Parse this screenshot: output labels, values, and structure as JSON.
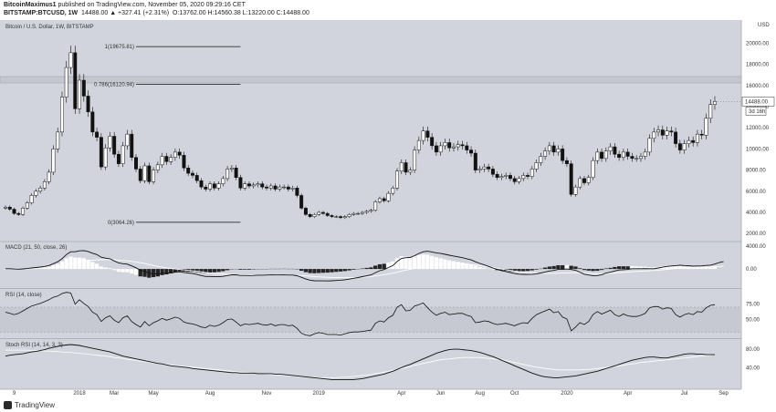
{
  "header": {
    "author": "BitcoinMaximus1",
    "published_line": " published on TradingView.com, November 05, 2020 09:29:16 CET",
    "symbol_line": "BITSTAMP:BTCUSD, 1W",
    "change": "14488.00 ▲ +327.41 (+2.31%)",
    "ohlc": "O:13762.00  H:14560.38  L:13220.00  C:14488.00"
  },
  "chart_data": [
    {
      "type": "candlestick",
      "title": "Bitcoin / U.S. Dollar, 1W, BITSTAMP",
      "currency": "USD",
      "y_ticks": [
        "20000.00",
        "18000.00",
        "16000.00",
        "14000.00",
        "12000.00",
        "10000.00",
        "8000.00",
        "6000.00",
        "4000.00",
        "2000.00"
      ],
      "ylim": [
        1500,
        21500
      ],
      "x_ticks": [
        "9",
        "2018",
        "Mar",
        "May",
        "Aug",
        "Nov",
        "2019",
        "Apr",
        "Jun",
        "Aug",
        "Oct",
        "2020",
        "Apr",
        "Jul",
        "Sep"
      ],
      "close": [
        4500,
        4300,
        3900,
        3800,
        4400,
        4900,
        5600,
        6000,
        6300,
        6900,
        7800,
        10000,
        11600,
        14900,
        17700,
        19100,
        13800,
        16500,
        15000,
        13500,
        11600,
        11100,
        8300,
        10100,
        11200,
        9500,
        8600,
        10300,
        11400,
        9200,
        8100,
        7000,
        8400,
        6900,
        8000,
        8500,
        9300,
        8800,
        9200,
        9700,
        9400,
        8200,
        7700,
        7500,
        7000,
        6400,
        6200,
        6700,
        6300,
        6700,
        7200,
        8100,
        8200,
        7300,
        6300,
        6700,
        6500,
        6600,
        6700,
        6400,
        6300,
        6500,
        6200,
        6400,
        6400,
        6200,
        6300,
        5600,
        4400,
        3800,
        3600,
        3800,
        4000,
        3900,
        3700,
        3600,
        3600,
        3500,
        3600,
        3800,
        3900,
        3900,
        4000,
        4100,
        4200,
        5000,
        5300,
        5100,
        5800,
        6300,
        7900,
        8700,
        7800,
        8000,
        9900,
        10800,
        11700,
        11100,
        10300,
        9700,
        10300,
        10600,
        10100,
        10200,
        10400,
        10300,
        9900,
        9600,
        8000,
        8100,
        8300,
        8100,
        7600,
        7300,
        7400,
        7500,
        7200,
        6900,
        7200,
        7500,
        7400,
        8100,
        8700,
        9300,
        9800,
        10300,
        9700,
        10000,
        8900,
        8600,
        5700,
        6400,
        7200,
        6800,
        7300,
        8900,
        9700,
        9100,
        9800,
        10200,
        9500,
        9200,
        9700,
        9300,
        9100,
        9100,
        9300,
        9700,
        11000,
        11600,
        11800,
        11300,
        11700,
        11600,
        10500,
        9900,
        10500,
        10800,
        10600,
        11400,
        11300,
        12900,
        14200,
        14488
      ],
      "fib_levels": [
        {
          "label": "1(19675.81)",
          "value": 19675.81
        },
        {
          "label": "0.786(16120.94)",
          "value": 16120.94
        },
        {
          "label": "0(3064.26)",
          "value": 3064.26
        }
      ],
      "last_price_label": "14488.00",
      "countdown_label": "3d 16h"
    },
    {
      "type": "line",
      "title": "MACD (21, 50, close, 26)",
      "y_ticks": [
        "4000.00",
        "0.00"
      ],
      "ylim": [
        -3000,
        4300
      ],
      "series": [
        {
          "values": [
            50,
            40,
            0,
            -30,
            20,
            80,
            170,
            250,
            340,
            450,
            600,
            920,
            1250,
            1800,
            2500,
            3000,
            3000,
            3150,
            3200,
            3050,
            2750,
            2500,
            2050,
            1880,
            1770,
            1400,
            1050,
            920,
            840,
            540,
            200,
            -200,
            -420,
            -750,
            -820,
            -850,
            -750,
            -750,
            -680,
            -550,
            -500,
            -600,
            -700,
            -800,
            -950,
            -1150,
            -1300,
            -1300,
            -1350,
            -1350,
            -1290,
            -1150,
            -1010,
            -1010,
            -1120,
            -1120,
            -1150,
            -1120,
            -1080,
            -1080,
            -1070,
            -1040,
            -1050,
            -1050,
            -1040,
            -1060,
            -1060,
            -1170,
            -1450,
            -1750,
            -1960,
            -2050,
            -2060,
            -2070,
            -2080,
            -2050,
            -2000,
            -1950,
            -1880,
            -1760,
            -1620,
            -1500,
            -1340,
            -1190,
            -1030,
            -640,
            -300,
            -100,
            260,
            580,
            1300,
            1840,
            1960,
            2000,
            2320,
            2710,
            3000,
            3090,
            2970,
            2810,
            2690,
            2560,
            2400,
            2250,
            2110,
            1960,
            1780,
            1590,
            1250,
            960,
            720,
            460,
            180,
            -80,
            -290,
            -440,
            -620,
            -800,
            -900,
            -930,
            -960,
            -920,
            -840,
            -700,
            -530,
            -350,
            -250,
            -80,
            -60,
            0,
            -100,
            -220,
            -550,
            -900,
            -1050,
            -1160,
            -1150,
            -1000,
            -700,
            -560,
            -350,
            -170,
            -120,
            -80,
            40,
            50,
            50,
            60,
            40,
            50,
            170,
            320,
            440,
            520,
            580,
            660,
            600,
            550,
            510,
            530,
            540,
            620,
            660,
            850,
            1120,
            1300
          ]
        },
        {
          "values": [
            50,
            48,
            44,
            38,
            36,
            41,
            54,
            73,
            100,
            137,
            184,
            255,
            345,
            470,
            645,
            838,
            1003,
            1166,
            1319,
            1440,
            1527,
            1590,
            1610,
            1622,
            1630,
            1599,
            1542,
            1481,
            1418,
            1335,
            1228,
            1091,
            946,
            770,
            604,
            442,
            316,
            195,
            87,
            -2,
            -78,
            -156,
            -235,
            -313,
            -399,
            -496,
            -597,
            -685,
            -769,
            -841,
            -897,
            -934,
            -951,
            -967,
            -990,
            -1011,
            -1032,
            -1048,
            -1058,
            -1068,
            -1075,
            -1078,
            -1082,
            -1085,
            -1088,
            -1091,
            -1094,
            -1104,
            -1139,
            -1191,
            -1251,
            -1310,
            -1362,
            -1407,
            -1447,
            -1476,
            -1498,
            -1512,
            -1518,
            -1513,
            -1495,
            -1469,
            -1429,
            -1379,
            -1317,
            -1224,
            -1115,
            -1002,
            -873,
            -735,
            -560,
            -372,
            -204,
            -52,
            115,
            286,
            456,
            595,
            700,
            775,
            829,
            862,
            879,
            880,
            868,
            846,
            812,
            764,
            691,
            597,
            492,
            375,
            247,
            113,
            -13,
            -129,
            -241,
            -349,
            -450,
            -536,
            -613,
            -678,
            -727,
            -758,
            -769,
            -764,
            -756,
            -734,
            -707,
            -677,
            -658,
            -649,
            -677,
            -723,
            -769,
            -808,
            -834,
            -832,
            -796,
            -755,
            -701,
            -638,
            -586,
            -537,
            -479,
            -427,
            -382,
            -340,
            -305,
            -270,
            -212,
            -143,
            -73,
            2,
            71,
            142,
            191,
            229,
            258,
            284,
            307,
            336,
            361,
            396,
            446,
            499
          ]
        }
      ]
    },
    {
      "type": "line",
      "title": "RSI (14, close)",
      "y_ticks": [
        "75.00",
        "50.00"
      ],
      "ylim": [
        23,
        95
      ],
      "series": [
        {
          "values": [
            62,
            60,
            58,
            60,
            64,
            68,
            72,
            74,
            76,
            79,
            82,
            86,
            88,
            92,
            94,
            93,
            75,
            82,
            76,
            71,
            62,
            58,
            47,
            53,
            56,
            49,
            45,
            53,
            56,
            47,
            42,
            38,
            47,
            40,
            45,
            48,
            52,
            49,
            51,
            54,
            52,
            46,
            44,
            43,
            41,
            38,
            37,
            41,
            39,
            41,
            45,
            50,
            51,
            46,
            40,
            43,
            42,
            43,
            44,
            42,
            41,
            43,
            40,
            42,
            42,
            40,
            41,
            36,
            28,
            25,
            24,
            27,
            29,
            28,
            26,
            26,
            26,
            25,
            27,
            29,
            30,
            30,
            31,
            32,
            33,
            44,
            48,
            46,
            53,
            57,
            70,
            74,
            64,
            65,
            72,
            74,
            77,
            69,
            62,
            57,
            60,
            62,
            58,
            59,
            60,
            60,
            57,
            55,
            45,
            46,
            48,
            47,
            44,
            42,
            43,
            44,
            42,
            40,
            43,
            45,
            44,
            52,
            58,
            61,
            64,
            67,
            61,
            63,
            54,
            51,
            32,
            38,
            45,
            42,
            47,
            58,
            63,
            59,
            62,
            65,
            58,
            55,
            59,
            56,
            55,
            55,
            57,
            60,
            69,
            71,
            71,
            67,
            69,
            68,
            58,
            54,
            58,
            60,
            58,
            63,
            62,
            69,
            73,
            74
          ]
        }
      ]
    },
    {
      "type": "line",
      "title": "Stoch RSI (14, 14, 3, 3)",
      "y_ticks": [
        "80.00",
        "40.00"
      ],
      "ylim": [
        -3,
        98
      ],
      "series": [
        {
          "values": [
            65,
            67,
            68,
            69,
            70,
            72,
            74,
            75,
            77,
            79,
            82,
            84,
            86,
            88,
            89,
            90,
            89,
            88,
            86,
            84,
            82,
            80,
            78,
            76,
            74,
            71,
            68,
            65,
            63,
            61,
            59,
            57,
            55,
            53,
            51,
            49,
            48,
            46,
            44,
            43,
            42,
            41,
            40,
            38,
            37,
            36,
            35,
            34,
            33,
            32,
            31,
            30,
            29,
            29,
            28,
            28,
            28,
            28,
            27,
            27,
            27,
            27,
            26,
            26,
            25,
            24,
            23,
            22,
            21,
            20,
            19,
            18,
            17,
            16,
            15,
            14,
            14,
            14,
            14,
            14,
            14,
            15,
            16,
            18,
            20,
            22,
            24,
            26,
            29,
            32,
            36,
            40,
            44,
            47,
            51,
            55,
            59,
            63,
            67,
            71,
            74,
            77,
            79,
            80,
            80,
            79,
            78,
            77,
            75,
            73,
            70,
            67,
            64,
            60,
            56,
            52,
            48,
            44,
            40,
            36,
            32,
            28,
            25,
            22,
            20,
            19,
            18,
            18,
            19,
            20,
            21,
            22,
            24,
            26,
            28,
            30,
            32,
            35,
            38,
            41,
            44,
            47,
            50,
            53,
            56,
            58,
            60,
            62,
            63,
            63,
            62,
            61,
            61,
            63,
            65,
            67,
            69,
            70,
            70,
            69,
            69,
            68,
            68,
            68
          ]
        },
        {
          "values": [
            78,
            78,
            78,
            78,
            78,
            78,
            77,
            77,
            77,
            76,
            76,
            75,
            75,
            74,
            73,
            73,
            72,
            71,
            70,
            69,
            68,
            67,
            66,
            65,
            64,
            62,
            61,
            60,
            58,
            57,
            56,
            54,
            53,
            52,
            50,
            49,
            48,
            47,
            46,
            45,
            44,
            43,
            42,
            41,
            40,
            39,
            38,
            37,
            36,
            35,
            34,
            33,
            32,
            31,
            30,
            30,
            29,
            28,
            27,
            27,
            26,
            25,
            24,
            24,
            23,
            22,
            22,
            21,
            20,
            20,
            19,
            19,
            18,
            18,
            18,
            18,
            18,
            19,
            19,
            20,
            21,
            22,
            23,
            24,
            25,
            27,
            28,
            30,
            32,
            34,
            36,
            38,
            40,
            42,
            45,
            47,
            49,
            51,
            53,
            55,
            57,
            58,
            59,
            60,
            61,
            62,
            62,
            62,
            62,
            62,
            61,
            60,
            59,
            58,
            57,
            55,
            53,
            51,
            49,
            47,
            45,
            43,
            41,
            40,
            38,
            37,
            36,
            35,
            35,
            35,
            35,
            35,
            35,
            36,
            36,
            37,
            38,
            39,
            40,
            42,
            43,
            44,
            45,
            47,
            48,
            49,
            51,
            52,
            53,
            54,
            55,
            56,
            57,
            58,
            59,
            60,
            61,
            62,
            63,
            64,
            65,
            66,
            67,
            68
          ]
        }
      ]
    }
  ],
  "footer": {
    "brand": "TradingView"
  }
}
